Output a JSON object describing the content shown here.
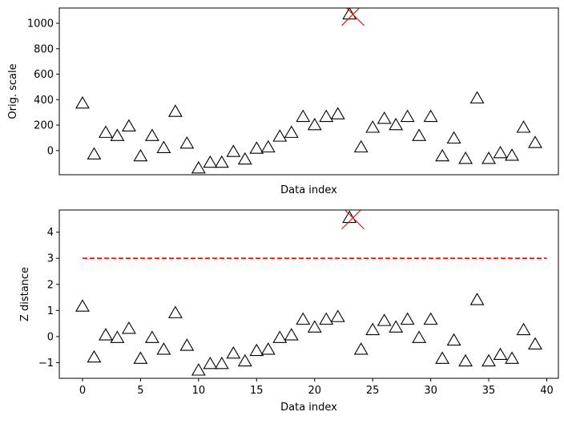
{
  "chart_data": [
    {
      "type": "scatter",
      "xlabel": "Data index",
      "ylabel": "Orig. scale",
      "ylim": [
        -190,
        1120
      ],
      "xlim": [
        -2,
        41
      ],
      "yticks": [
        0,
        200,
        400,
        600,
        800,
        1000
      ],
      "show_xticks": false,
      "marker": "open-triangle",
      "outlier_marker": "red-x",
      "colors": {
        "marker": "#000000",
        "outlier": "#ff0000"
      },
      "points": [
        [
          0,
          370
        ],
        [
          1,
          -30
        ],
        [
          2,
          140
        ],
        [
          3,
          115
        ],
        [
          4,
          190
        ],
        [
          5,
          -45
        ],
        [
          6,
          115
        ],
        [
          7,
          20
        ],
        [
          8,
          305
        ],
        [
          9,
          55
        ],
        [
          10,
          -140
        ],
        [
          11,
          -95
        ],
        [
          12,
          -95
        ],
        [
          13,
          -10
        ],
        [
          14,
          -70
        ],
        [
          15,
          15
        ],
        [
          16,
          25
        ],
        [
          17,
          110
        ],
        [
          18,
          140
        ],
        [
          19,
          265
        ],
        [
          20,
          200
        ],
        [
          21,
          265
        ],
        [
          22,
          285
        ],
        [
          23,
          1070
        ],
        [
          24,
          25
        ],
        [
          25,
          180
        ],
        [
          26,
          250
        ],
        [
          27,
          200
        ],
        [
          28,
          265
        ],
        [
          29,
          115
        ],
        [
          30,
          265
        ],
        [
          31,
          -45
        ],
        [
          32,
          95
        ],
        [
          33,
          -65
        ],
        [
          34,
          410
        ],
        [
          35,
          -65
        ],
        [
          36,
          -20
        ],
        [
          37,
          -40
        ],
        [
          38,
          180
        ],
        [
          39,
          60
        ]
      ],
      "outliers": [
        [
          23.3,
          1070
        ]
      ]
    },
    {
      "type": "scatter",
      "xlabel": "Data index",
      "ylabel": "Z distance",
      "ylim": [
        -1.6,
        4.85
      ],
      "xlim": [
        -2,
        41
      ],
      "yticks": [
        -1,
        0,
        1,
        2,
        3,
        4
      ],
      "xticks": [
        0,
        5,
        10,
        15,
        20,
        25,
        30,
        35,
        40
      ],
      "show_xticks": true,
      "marker": "open-triangle",
      "outlier_marker": "red-x",
      "colors": {
        "marker": "#000000",
        "outlier": "#ff0000",
        "threshold": "#ff0000"
      },
      "threshold": {
        "value": 3,
        "x_from": 0,
        "x_to": 40,
        "style": "dashed"
      },
      "points": [
        [
          0,
          1.15
        ],
        [
          1,
          -0.8
        ],
        [
          2,
          0.05
        ],
        [
          3,
          -0.05
        ],
        [
          4,
          0.3
        ],
        [
          5,
          -0.85
        ],
        [
          6,
          -0.05
        ],
        [
          7,
          -0.5
        ],
        [
          8,
          0.9
        ],
        [
          9,
          -0.35
        ],
        [
          10,
          -1.3
        ],
        [
          11,
          -1.05
        ],
        [
          12,
          -1.05
        ],
        [
          13,
          -0.65
        ],
        [
          14,
          -0.95
        ],
        [
          15,
          -0.55
        ],
        [
          16,
          -0.5
        ],
        [
          17,
          -0.05
        ],
        [
          18,
          0.05
        ],
        [
          19,
          0.65
        ],
        [
          20,
          0.35
        ],
        [
          21,
          0.65
        ],
        [
          22,
          0.75
        ],
        [
          23,
          4.55
        ],
        [
          24,
          -0.5
        ],
        [
          25,
          0.25
        ],
        [
          26,
          0.6
        ],
        [
          27,
          0.35
        ],
        [
          28,
          0.65
        ],
        [
          29,
          -0.05
        ],
        [
          30,
          0.65
        ],
        [
          31,
          -0.85
        ],
        [
          32,
          -0.15
        ],
        [
          33,
          -0.95
        ],
        [
          34,
          1.4
        ],
        [
          35,
          -0.95
        ],
        [
          36,
          -0.7
        ],
        [
          37,
          -0.85
        ],
        [
          38,
          0.25
        ],
        [
          39,
          -0.3
        ]
      ],
      "outliers": [
        [
          23.3,
          4.55
        ]
      ]
    }
  ]
}
